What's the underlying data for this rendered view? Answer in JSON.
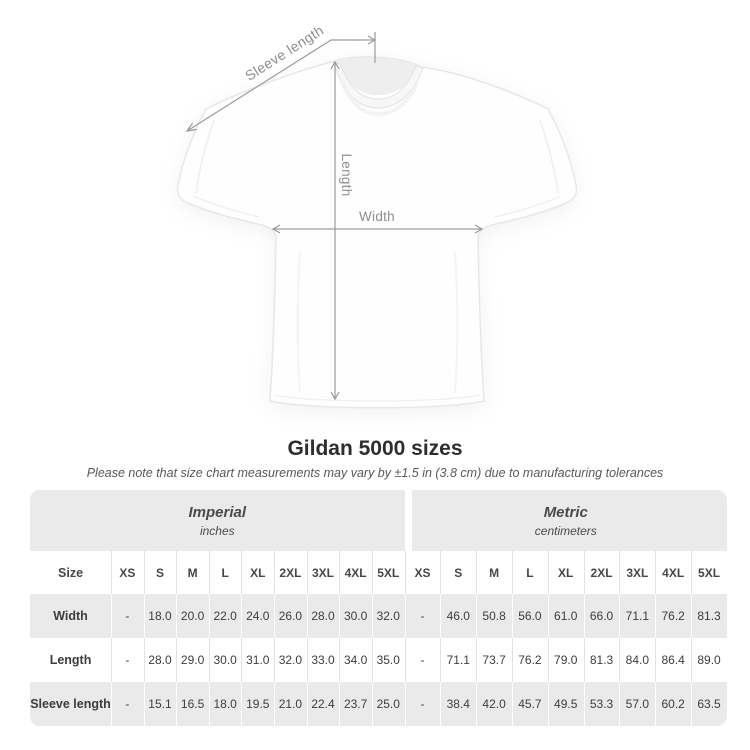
{
  "diagram": {
    "labels": {
      "sleeve_length": "Sleeve length",
      "length": "Length",
      "width": "Width"
    }
  },
  "heading": {
    "title": "Gildan 5000 sizes",
    "note": "Please note that size chart measurements may vary by ±1.5 in (3.8 cm) due to manufacturing tolerances"
  },
  "table": {
    "groups": [
      {
        "label": "Imperial",
        "sublabel": "inches"
      },
      {
        "label": "Metric",
        "sublabel": "centimeters"
      }
    ],
    "size_header": "Size",
    "sizes": [
      "XS",
      "S",
      "M",
      "L",
      "XL",
      "2XL",
      "3XL",
      "4XL",
      "5XL"
    ],
    "rows": [
      {
        "label": "Width",
        "imperial": [
          "-",
          "18.0",
          "20.0",
          "22.0",
          "24.0",
          "26.0",
          "28.0",
          "30.0",
          "32.0"
        ],
        "metric": [
          "-",
          "46.0",
          "50.8",
          "56.0",
          "61.0",
          "66.0",
          "71.1",
          "76.2",
          "81.3"
        ]
      },
      {
        "label": "Length",
        "imperial": [
          "-",
          "28.0",
          "29.0",
          "30.0",
          "31.0",
          "32.0",
          "33.0",
          "34.0",
          "35.0"
        ],
        "metric": [
          "-",
          "71.1",
          "73.7",
          "76.2",
          "79.0",
          "81.3",
          "84.0",
          "86.4",
          "89.0"
        ]
      },
      {
        "label": "Sleeve length",
        "imperial": [
          "-",
          "15.1",
          "16.5",
          "18.0",
          "19.5",
          "21.0",
          "22.4",
          "23.7",
          "25.0"
        ],
        "metric": [
          "-",
          "38.4",
          "42.0",
          "45.7",
          "49.5",
          "53.3",
          "57.0",
          "60.2",
          "63.5"
        ]
      }
    ]
  },
  "colors": {
    "row_stripe": "#eaeaea",
    "separator": "#e2e2e2",
    "dimension_line": "#9a9a9a",
    "dimension_label": "#8d8d8d"
  }
}
